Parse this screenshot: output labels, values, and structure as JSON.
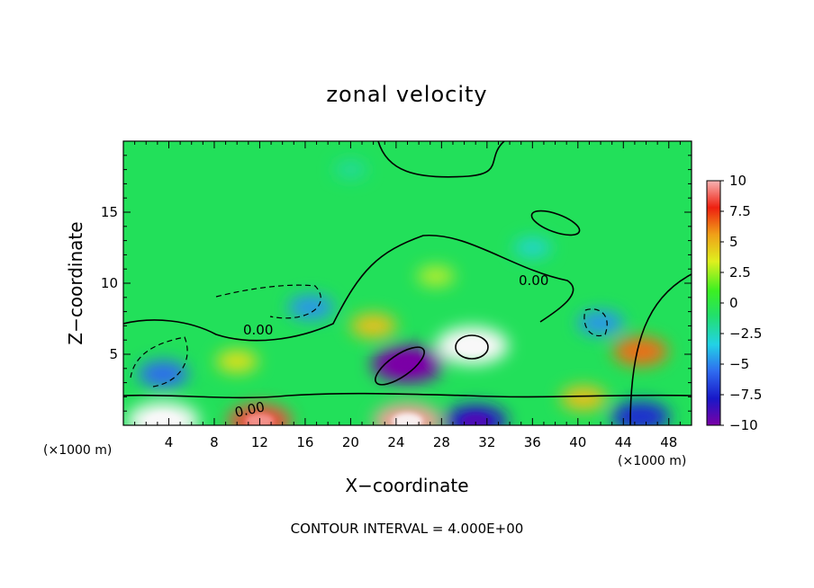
{
  "chart_data": {
    "type": "heatmap",
    "title": "zonal velocity",
    "xlabel": "X−coordinate",
    "ylabel": "Z−coordinate",
    "x_unit": "(×1000 m)",
    "xlim": [
      0,
      50
    ],
    "ylim": [
      0,
      20
    ],
    "x_ticks": [
      4,
      8,
      12,
      16,
      20,
      24,
      28,
      32,
      36,
      40,
      44,
      48
    ],
    "y_ticks": [
      5,
      10,
      15
    ],
    "colorbar": {
      "range": [
        -10,
        10
      ],
      "ticks": [
        "10",
        "7.5",
        "5",
        "2.5",
        "0",
        "−2.5",
        "−5",
        "−7.5",
        "−10"
      ]
    },
    "contour_label": "0.00",
    "contour_interval_text": "CONTOUR INTERVAL = 4.000E+00",
    "features": [
      {
        "x": 3.5,
        "z": 0.3,
        "value": 10
      },
      {
        "x": 12.0,
        "z": 0.3,
        "value": 8
      },
      {
        "x": 25.0,
        "z": 0.3,
        "value": 9
      },
      {
        "x": 30.7,
        "z": 5.6,
        "value": 10
      },
      {
        "x": 45.5,
        "z": 5.2,
        "value": 6
      },
      {
        "x": 40.5,
        "z": 1.9,
        "value": 4
      },
      {
        "x": 22.0,
        "z": 7.0,
        "value": 4
      },
      {
        "x": 25.0,
        "z": 4.3,
        "value": -10
      },
      {
        "x": 31.0,
        "z": 0.3,
        "value": -8
      },
      {
        "x": 3.5,
        "z": 3.6,
        "value": -5
      },
      {
        "x": 45.5,
        "z": 0.6,
        "value": -7
      },
      {
        "x": 16.5,
        "z": 8.3,
        "value": -4
      },
      {
        "x": 42.0,
        "z": 7.2,
        "value": -4
      },
      {
        "x": 36.0,
        "z": 12.5,
        "value": -2
      },
      {
        "x": 20.0,
        "z": 18.0,
        "value": -1
      },
      {
        "x": 10.0,
        "z": 4.5,
        "value": 3
      },
      {
        "x": 27.5,
        "z": 10.5,
        "value": 2
      }
    ]
  }
}
